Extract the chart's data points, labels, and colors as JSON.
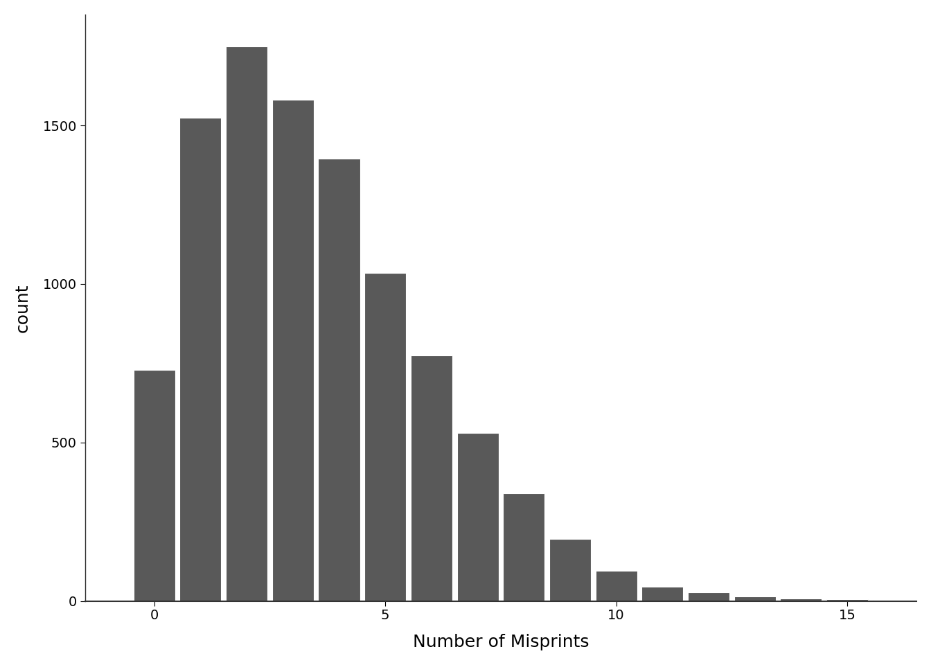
{
  "bar_centers": [
    0,
    1,
    2,
    3,
    4,
    5,
    6,
    7,
    8,
    9,
    10,
    11,
    12,
    13,
    14,
    15,
    16
  ],
  "counts": [
    730,
    1525,
    1750,
    1580,
    1395,
    1035,
    775,
    530,
    340,
    195,
    95,
    45,
    28,
    15,
    8,
    5,
    3
  ],
  "bar_color": "#595959",
  "bar_edgecolor": "white",
  "bar_linewidth": 0.8,
  "xlabel": "Number of Misprints",
  "ylabel": "count",
  "xlim": [
    -1.5,
    16.5
  ],
  "ylim": [
    0,
    1850
  ],
  "xticks": [
    0,
    5,
    10,
    15
  ],
  "yticks": [
    0,
    500,
    1000,
    1500
  ],
  "background_color": "#ffffff",
  "xlabel_fontsize": 18,
  "ylabel_fontsize": 18,
  "tick_fontsize": 14,
  "bar_width": 0.9
}
